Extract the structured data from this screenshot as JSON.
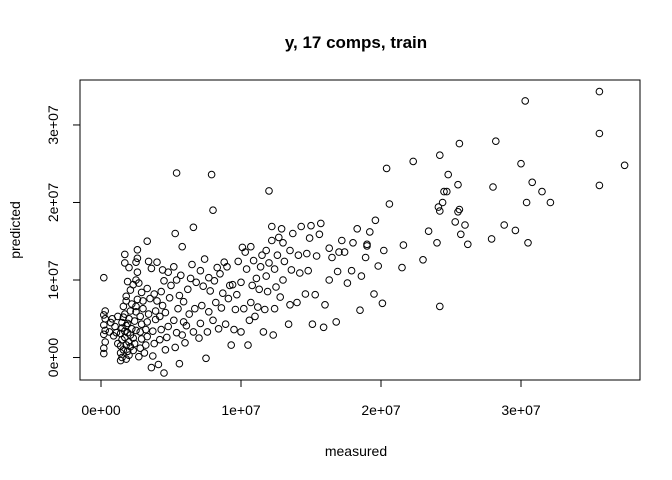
{
  "chart_data": {
    "type": "scatter",
    "title": "y, 17 comps, train",
    "xlabel": "measured",
    "ylabel": "predicted",
    "xlim": [
      -1500000,
      38500000
    ],
    "ylim": [
      -2900000,
      35800000
    ],
    "x_ticks": [
      {
        "value": 0,
        "label": "0e+00"
      },
      {
        "value": 10000000,
        "label": "1e+07"
      },
      {
        "value": 20000000,
        "label": "2e+07"
      },
      {
        "value": 30000000,
        "label": "3e+07"
      }
    ],
    "y_ticks": [
      {
        "value": 0,
        "label": "0e+00"
      },
      {
        "value": 10000000,
        "label": "1e+07"
      },
      {
        "value": 20000000,
        "label": "2e+07"
      },
      {
        "value": 30000000,
        "label": "3e+07"
      }
    ],
    "grid": false,
    "marker": "open-circle",
    "points": [
      [
        0.2,
        0.5
      ],
      [
        0.2,
        1.2
      ],
      [
        0.3,
        2
      ],
      [
        0.2,
        3
      ],
      [
        0.3,
        3.5
      ],
      [
        0.2,
        4.2
      ],
      [
        0.3,
        5
      ],
      [
        0.2,
        5.5
      ],
      [
        0.3,
        6
      ],
      [
        0.2,
        10.3
      ],
      [
        0.6,
        3.3
      ],
      [
        0.7,
        4.5
      ],
      [
        0.8,
        5
      ],
      [
        0.9,
        2.8
      ],
      [
        1.0,
        4
      ],
      [
        1.1,
        3.2
      ],
      [
        1.2,
        1.8
      ],
      [
        1.2,
        5.3
      ],
      [
        1.4,
        -0.4
      ],
      [
        1.4,
        0.6
      ],
      [
        1.4,
        1.5
      ],
      [
        1.5,
        2.3
      ],
      [
        1.4,
        3.1
      ],
      [
        1.5,
        3.8
      ],
      [
        1.5,
        4.5
      ],
      [
        1.6,
        5.2
      ],
      [
        1.5,
        0
      ],
      [
        1.6,
        1
      ],
      [
        1.7,
        2.6
      ],
      [
        1.7,
        3.4
      ],
      [
        1.8,
        4.1
      ],
      [
        1.7,
        5.6
      ],
      [
        1.6,
        6.6
      ],
      [
        1.8,
        -0.2
      ],
      [
        1.9,
        0.8
      ],
      [
        1.8,
        1.6
      ],
      [
        1.9,
        3.2
      ],
      [
        1.9,
        4.4
      ],
      [
        1.8,
        7.3
      ],
      [
        1.8,
        7.9
      ],
      [
        1.7,
        12.2
      ],
      [
        1.7,
        13.3
      ],
      [
        2.0,
        0.3
      ],
      [
        2.1,
        1.4
      ],
      [
        2.0,
        2
      ],
      [
        2.1,
        2.9
      ],
      [
        2.2,
        3.7
      ],
      [
        2.0,
        5
      ],
      [
        2.1,
        6
      ],
      [
        2.2,
        6.9
      ],
      [
        2.1,
        8.7
      ],
      [
        2.0,
        11.6
      ],
      [
        1.9,
        9.8
      ],
      [
        2.3,
        0.9
      ],
      [
        2.4,
        1.8
      ],
      [
        2.3,
        2.5
      ],
      [
        2.5,
        3.5
      ],
      [
        2.4,
        4.7
      ],
      [
        2.5,
        5.9
      ],
      [
        2.5,
        6.6
      ],
      [
        2.6,
        7.5
      ],
      [
        2.3,
        9.4
      ],
      [
        2.5,
        10
      ],
      [
        2.6,
        11
      ],
      [
        2.5,
        12.3
      ],
      [
        2.6,
        13.9
      ],
      [
        2.7,
        0.1
      ],
      [
        2.8,
        1.2
      ],
      [
        2.9,
        2.4
      ],
      [
        2.8,
        3.3
      ],
      [
        2.9,
        4.3
      ],
      [
        2.8,
        5.3
      ],
      [
        3.0,
        6.3
      ],
      [
        3.0,
        7.3
      ],
      [
        2.9,
        8.4
      ],
      [
        2.7,
        9.6
      ],
      [
        2.6,
        12.8
      ],
      [
        3.1,
        0.6
      ],
      [
        3.2,
        1.6
      ],
      [
        3.3,
        2.7
      ],
      [
        3.2,
        3.6
      ],
      [
        3.3,
        4.6
      ],
      [
        3.4,
        5.6
      ],
      [
        3.5,
        7.6
      ],
      [
        3.3,
        8.9
      ],
      [
        3.6,
        11.5
      ],
      [
        3.4,
        12.4
      ],
      [
        3.3,
        15
      ],
      [
        3.6,
        -1.3
      ],
      [
        3.7,
        0.2
      ],
      [
        3.8,
        1.8
      ],
      [
        3.7,
        3.4
      ],
      [
        3.9,
        4.9
      ],
      [
        3.9,
        6
      ],
      [
        4.0,
        7.3
      ],
      [
        3.8,
        8.2
      ],
      [
        4.0,
        12.3
      ],
      [
        4.1,
        -0.9
      ],
      [
        4.2,
        2.3
      ],
      [
        4.3,
        3.6
      ],
      [
        4.2,
        5.3
      ],
      [
        4.4,
        6.7
      ],
      [
        4.3,
        8.5
      ],
      [
        4.5,
        9.9
      ],
      [
        4.4,
        11.3
      ],
      [
        4.5,
        -2
      ],
      [
        4.6,
        1
      ],
      [
        4.7,
        2.6
      ],
      [
        4.8,
        4
      ],
      [
        4.6,
        5.8
      ],
      [
        4.9,
        7.7
      ],
      [
        5.0,
        9.3
      ],
      [
        4.8,
        11
      ],
      [
        5.2,
        11.7
      ],
      [
        5.3,
        1.3
      ],
      [
        5.4,
        3.2
      ],
      [
        5.2,
        4.8
      ],
      [
        5.5,
        6.3
      ],
      [
        5.6,
        8
      ],
      [
        5.4,
        10
      ],
      [
        5.3,
        16
      ],
      [
        5.4,
        23.8
      ],
      [
        5.6,
        -0.8
      ],
      [
        5.8,
        2.9
      ],
      [
        5.9,
        4.6
      ],
      [
        5.9,
        7.2
      ],
      [
        5.7,
        10.6
      ],
      [
        5.8,
        14.3
      ],
      [
        6.0,
        1.9
      ],
      [
        6.1,
        4.1
      ],
      [
        6.3,
        5.6
      ],
      [
        6.2,
        8.8
      ],
      [
        6.4,
        10.2
      ],
      [
        6.5,
        12
      ],
      [
        6.6,
        3.3
      ],
      [
        6.7,
        6.3
      ],
      [
        6.8,
        9.7
      ],
      [
        6.6,
        16.8
      ],
      [
        7.0,
        2.5
      ],
      [
        7.1,
        4.4
      ],
      [
        7.2,
        6.7
      ],
      [
        7.3,
        9.2
      ],
      [
        7.1,
        11.2
      ],
      [
        7.4,
        12.7
      ],
      [
        7.5,
        -0.1
      ],
      [
        7.6,
        3.3
      ],
      [
        7.7,
        5.9
      ],
      [
        7.8,
        8.6
      ],
      [
        7.7,
        10.3
      ],
      [
        8.0,
        4.8
      ],
      [
        8.2,
        7.1
      ],
      [
        8.1,
        9.9
      ],
      [
        8.3,
        11.6
      ],
      [
        7.9,
        23.6
      ],
      [
        8.0,
        19
      ],
      [
        8.4,
        3.7
      ],
      [
        8.6,
        6.4
      ],
      [
        8.7,
        8.3
      ],
      [
        8.5,
        10.8
      ],
      [
        8.8,
        12.3
      ],
      [
        8.9,
        4.3
      ],
      [
        9.1,
        7.6
      ],
      [
        9.2,
        9.3
      ],
      [
        9.0,
        11.7
      ],
      [
        9.3,
        1.6
      ],
      [
        9.5,
        3.6
      ],
      [
        9.6,
        6.2
      ],
      [
        9.7,
        8.1
      ],
      [
        9.4,
        9.4
      ],
      [
        9.8,
        12.4
      ],
      [
        10.0,
        3.3
      ],
      [
        10.2,
        6.3
      ],
      [
        10.0,
        9.7
      ],
      [
        10.1,
        14.2
      ],
      [
        10.3,
        13.6
      ],
      [
        10.5,
        1.6
      ],
      [
        10.6,
        4.8
      ],
      [
        10.7,
        7.1
      ],
      [
        10.8,
        9.3
      ],
      [
        10.4,
        11.4
      ],
      [
        10.9,
        12.5
      ],
      [
        10.7,
        14.3
      ],
      [
        11.0,
        5.3
      ],
      [
        11.2,
        6.5
      ],
      [
        11.3,
        8.8
      ],
      [
        11.1,
        10.2
      ],
      [
        11.4,
        11.7
      ],
      [
        11.5,
        13.2
      ],
      [
        11.6,
        3.3
      ],
      [
        11.7,
        6.2
      ],
      [
        11.9,
        8.5
      ],
      [
        11.8,
        10.5
      ],
      [
        12.0,
        12.2
      ],
      [
        11.8,
        13.8
      ],
      [
        12.0,
        21.5
      ],
      [
        12.2,
        15.1
      ],
      [
        12.3,
        2.9
      ],
      [
        12.4,
        6.3
      ],
      [
        12.5,
        9.1
      ],
      [
        12.4,
        11.4
      ],
      [
        12.6,
        13.2
      ],
      [
        12.2,
        16.9
      ],
      [
        12.7,
        15.5
      ],
      [
        12.8,
        7.8
      ],
      [
        13.0,
        10
      ],
      [
        13.1,
        12.4
      ],
      [
        13.0,
        14.8
      ],
      [
        12.9,
        16.6
      ],
      [
        13.4,
        4.3
      ],
      [
        13.5,
        6.8
      ],
      [
        13.6,
        11.3
      ],
      [
        13.5,
        13.8
      ],
      [
        13.7,
        16
      ],
      [
        14.0,
        7.1
      ],
      [
        14.2,
        10.9
      ],
      [
        14.1,
        13.2
      ],
      [
        14.3,
        16.9
      ],
      [
        14.6,
        8.2
      ],
      [
        14.8,
        11.2
      ],
      [
        14.7,
        13.4
      ],
      [
        14.9,
        15.4
      ],
      [
        15.0,
        17
      ],
      [
        15.1,
        4.3
      ],
      [
        15.3,
        8.1
      ],
      [
        15.4,
        13.1
      ],
      [
        15.6,
        15.9
      ],
      [
        15.7,
        17.3
      ],
      [
        15.9,
        3.9
      ],
      [
        16.0,
        6.8
      ],
      [
        16.3,
        10
      ],
      [
        16.5,
        12.9
      ],
      [
        16.3,
        14.1
      ],
      [
        16.8,
        4.6
      ],
      [
        16.9,
        11.1
      ],
      [
        17.0,
        13.6
      ],
      [
        17.2,
        15.1
      ],
      [
        17.4,
        13.6
      ],
      [
        17.6,
        9.6
      ],
      [
        17.9,
        11.2
      ],
      [
        18.0,
        14.8
      ],
      [
        18.3,
        16.6
      ],
      [
        18.5,
        6.1
      ],
      [
        18.6,
        10.5
      ],
      [
        18.9,
        12.9
      ],
      [
        19.0,
        14.6
      ],
      [
        19.2,
        16.2
      ],
      [
        19.0,
        14.4
      ],
      [
        19.5,
        8.2
      ],
      [
        19.8,
        11.8
      ],
      [
        19.6,
        17.7
      ],
      [
        20.1,
        7
      ],
      [
        20.2,
        13.8
      ],
      [
        20.4,
        24.4
      ],
      [
        20.6,
        19.8
      ],
      [
        21.5,
        11.6
      ],
      [
        21.6,
        14.5
      ],
      [
        22.3,
        25.3
      ],
      [
        23.0,
        12.6
      ],
      [
        23.4,
        16.3
      ],
      [
        24.0,
        14.8
      ],
      [
        24.2,
        6.6
      ],
      [
        24.1,
        19.4
      ],
      [
        24.2,
        18.9
      ],
      [
        24.4,
        20
      ],
      [
        24.2,
        26.1
      ],
      [
        24.5,
        21.4
      ],
      [
        24.7,
        21.4
      ],
      [
        24.8,
        23.6
      ],
      [
        25.3,
        17.5
      ],
      [
        25.5,
        18.8
      ],
      [
        25.6,
        19.1
      ],
      [
        25.5,
        22.3
      ],
      [
        25.6,
        27.6
      ],
      [
        25.7,
        15.9
      ],
      [
        26.0,
        17.1
      ],
      [
        26.2,
        14.6
      ],
      [
        27.9,
        15.3
      ],
      [
        28.0,
        22
      ],
      [
        28.2,
        27.9
      ],
      [
        28.8,
        17.1
      ],
      [
        29.6,
        16.4
      ],
      [
        30.0,
        25
      ],
      [
        30.5,
        14.8
      ],
      [
        30.4,
        20
      ],
      [
        30.3,
        33.1
      ],
      [
        30.8,
        22.6
      ],
      [
        31.5,
        21.4
      ],
      [
        32.1,
        20
      ],
      [
        35.6,
        28.9
      ],
      [
        35.6,
        22.2
      ],
      [
        35.6,
        34.3
      ],
      [
        37.4,
        24.8
      ]
    ]
  }
}
